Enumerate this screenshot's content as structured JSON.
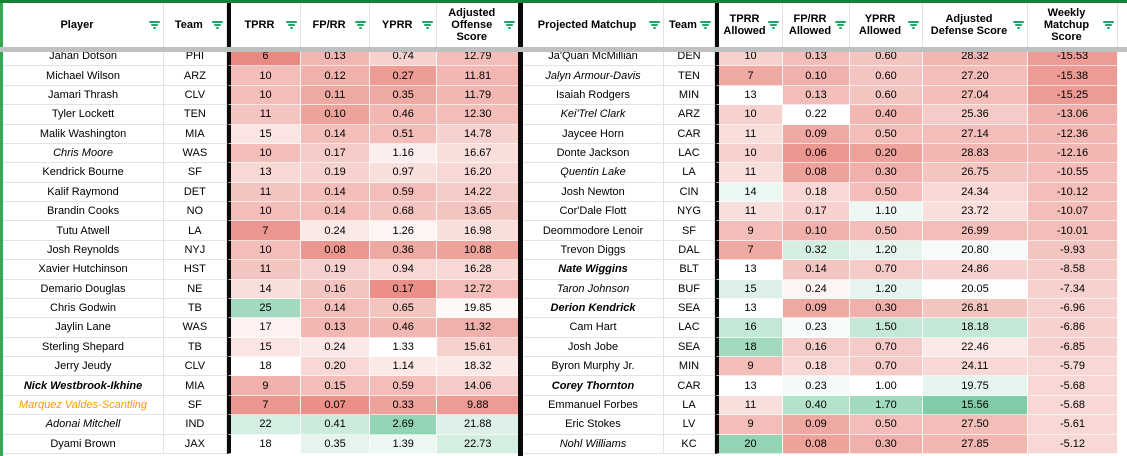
{
  "theme": {
    "top_border_green": "#188038",
    "left_border_green": "#34a853",
    "filter_icon_green": "#21a464",
    "thick_divider_black": "#0a0a0a",
    "frozen_bar_gray": "#bdc1c0",
    "gridline_gray": "#e2e2e2",
    "scale_red_max": "#e67c73",
    "scale_green_max": "#57bb8a",
    "orange_player_text": "#ff9900"
  },
  "left_table": {
    "headers": [
      {
        "label": "Player"
      },
      {
        "label": "Team"
      },
      {
        "label": "TPRR"
      },
      {
        "label": "FP/RR"
      },
      {
        "label": "YPRR"
      },
      {
        "label": "Adjusted Offense Score"
      }
    ],
    "rows": [
      {
        "name": "Jahan Dotson",
        "team": "PHI",
        "style": "normal",
        "cells": [
          [
            "6",
            "#e98a82"
          ],
          [
            "0.13",
            "#f2b7b2"
          ],
          [
            "0.74",
            "#f7d1ce"
          ],
          [
            "12.79",
            "#f3beb9"
          ]
        ]
      },
      {
        "name": "Michael Wilson",
        "team": "ARZ",
        "style": "normal",
        "cells": [
          [
            "10",
            "#f3beb9"
          ],
          [
            "0.12",
            "#f0b0ab"
          ],
          [
            "0.27",
            "#ec9c95"
          ],
          [
            "11.81",
            "#f2b7b2"
          ]
        ]
      },
      {
        "name": "Jamari Thrash",
        "team": "CLV",
        "style": "normal",
        "cells": [
          [
            "10",
            "#f3beb9"
          ],
          [
            "0.11",
            "#efa9a3"
          ],
          [
            "0.35",
            "#efa9a3"
          ],
          [
            "11.79",
            "#f2b7b2"
          ]
        ]
      },
      {
        "name": "Tyler Lockett",
        "team": "TEN",
        "style": "normal",
        "cells": [
          [
            "11",
            "#f4c5c0"
          ],
          [
            "0.10",
            "#eda29c"
          ],
          [
            "0.46",
            "#f2b7b2"
          ],
          [
            "12.30",
            "#f3beb9"
          ]
        ]
      },
      {
        "name": "Malik Washington",
        "team": "MIA",
        "style": "normal",
        "cells": [
          [
            "15",
            "#fae5e3"
          ],
          [
            "0.14",
            "#f3beb9"
          ],
          [
            "0.51",
            "#f3beb9"
          ],
          [
            "14.78",
            "#f7d1ce"
          ]
        ]
      },
      {
        "name": "Chris Moore",
        "team": "WAS",
        "style": "italic",
        "cells": [
          [
            "10",
            "#f3beb9"
          ],
          [
            "0.17",
            "#f5cbc7"
          ],
          [
            "1.16",
            "#fceeec"
          ],
          [
            "16.67",
            "#f9dfdc"
          ]
        ]
      },
      {
        "name": "Kendrick Bourne",
        "team": "SF",
        "style": "normal",
        "cells": [
          [
            "13",
            "#f8d8d5"
          ],
          [
            "0.19",
            "#f7d1ce"
          ],
          [
            "0.97",
            "#f9dfdc"
          ],
          [
            "16.20",
            "#f8d8d5"
          ]
        ]
      },
      {
        "name": "Kalif Raymond",
        "team": "DET",
        "style": "normal",
        "cells": [
          [
            "11",
            "#f4c5c0"
          ],
          [
            "0.14",
            "#f3beb9"
          ],
          [
            "0.59",
            "#f3beb9"
          ],
          [
            "14.22",
            "#f5cbc7"
          ]
        ]
      },
      {
        "name": "Brandin Cooks",
        "team": "NO",
        "style": "normal",
        "cells": [
          [
            "10",
            "#f3beb9"
          ],
          [
            "0.14",
            "#f3beb9"
          ],
          [
            "0.68",
            "#f4c5c0"
          ],
          [
            "13.65",
            "#f4c5c0"
          ]
        ]
      },
      {
        "name": "Tutu Atwell",
        "team": "LA",
        "style": "normal",
        "cells": [
          [
            "7",
            "#eb968f"
          ],
          [
            "0.24",
            "#fbe9e7"
          ],
          [
            "1.26",
            "#fdf4f3"
          ],
          [
            "16.98",
            "#f9dfdc"
          ]
        ]
      },
      {
        "name": "Josh Reynolds",
        "team": "NYJ",
        "style": "normal",
        "cells": [
          [
            "10",
            "#f3beb9"
          ],
          [
            "0.08",
            "#eb968f"
          ],
          [
            "0.36",
            "#efa9a3"
          ],
          [
            "10.88",
            "#eda29c"
          ]
        ]
      },
      {
        "name": "Xavier Hutchinson",
        "team": "HST",
        "style": "normal",
        "cells": [
          [
            "11",
            "#f4c5c0"
          ],
          [
            "0.19",
            "#f7d1ce"
          ],
          [
            "0.94",
            "#f8d8d5"
          ],
          [
            "16.28",
            "#f8d8d5"
          ]
        ]
      },
      {
        "name": "Demario Douglas",
        "team": "NE",
        "style": "normal",
        "cells": [
          [
            "14",
            "#f9dfdc"
          ],
          [
            "0.16",
            "#f4c5c0"
          ],
          [
            "0.17",
            "#ea9089"
          ],
          [
            "12.72",
            "#f3beb9"
          ]
        ]
      },
      {
        "name": "Chris Godwin",
        "team": "TB",
        "style": "normal",
        "cells": [
          [
            "25",
            "#a2dabf"
          ],
          [
            "0.14",
            "#f3beb9"
          ],
          [
            "0.65",
            "#f4c5c0"
          ],
          [
            "19.85",
            "#fef8f7"
          ]
        ]
      },
      {
        "name": "Jaylin Lane",
        "team": "WAS",
        "style": "normal",
        "cells": [
          [
            "17",
            "#fdf2f1"
          ],
          [
            "0.13",
            "#f2b7b2"
          ],
          [
            "0.46",
            "#f2b7b2"
          ],
          [
            "11.32",
            "#f0b0ab"
          ]
        ]
      },
      {
        "name": "Sterling Shepard",
        "team": "TB",
        "style": "normal",
        "cells": [
          [
            "15",
            "#fae5e3"
          ],
          [
            "0.24",
            "#fbe9e7"
          ],
          [
            "1.33",
            "#ffffff"
          ],
          [
            "15.61",
            "#f7d1ce"
          ]
        ]
      },
      {
        "name": "Jerry Jeudy",
        "team": "CLV",
        "style": "normal",
        "cells": [
          [
            "18",
            "#ffffff"
          ],
          [
            "0.20",
            "#f8d8d5"
          ],
          [
            "1.14",
            "#fbe9e7"
          ],
          [
            "18.32",
            "#fbe9e7"
          ]
        ]
      },
      {
        "name": "Nick Westbrook-Ikhine",
        "team": "MIA",
        "style": "bold-italic",
        "cells": [
          [
            "9",
            "#f0b0ab"
          ],
          [
            "0.15",
            "#f3beb9"
          ],
          [
            "0.59",
            "#f3beb9"
          ],
          [
            "14.06",
            "#f5cbc7"
          ]
        ]
      },
      {
        "name": "Marquez Valdes-Scantling",
        "team": "SF",
        "style": "italic-orange",
        "cells": [
          [
            "7",
            "#eb968f"
          ],
          [
            "0.07",
            "#ea9089"
          ],
          [
            "0.33",
            "#eda29c"
          ],
          [
            "9.88",
            "#ec9c95"
          ]
        ]
      },
      {
        "name": "Adonai Mitchell",
        "team": "IND",
        "style": "italic",
        "cells": [
          [
            "22",
            "#d4eee2"
          ],
          [
            "0.41",
            "#cdebdc"
          ],
          [
            "2.69",
            "#93d4b4"
          ],
          [
            "21.88",
            "#ddf1e8"
          ]
        ]
      },
      {
        "name": "Dyami Brown",
        "team": "JAX",
        "style": "normal",
        "cells": [
          [
            "18",
            "#ffffff"
          ],
          [
            "0.35",
            "#e5f4ed"
          ],
          [
            "1.39",
            "#eef8f3"
          ],
          [
            "22.73",
            "#d4eee2"
          ]
        ]
      }
    ]
  },
  "right_table": {
    "headers": [
      {
        "label": "Projected Matchup"
      },
      {
        "label": "Team"
      },
      {
        "label": "TPRR Allowed"
      },
      {
        "label": "FP/RR Allowed"
      },
      {
        "label": "YPRR Allowed"
      },
      {
        "label": "Adjusted Defense Score"
      },
      {
        "label": "Weekly Matchup Score"
      }
    ],
    "rows": [
      {
        "name": "Ja'Quan McMillian",
        "team": "DEN",
        "style": "normal",
        "cells": [
          [
            "10",
            "#f7d1ce"
          ],
          [
            "0.13",
            "#f3beb9"
          ],
          [
            "0.60",
            "#f4c5c0"
          ],
          [
            "28.32",
            "#f2b7b2"
          ],
          [
            "-15.53",
            "#ec9c95"
          ]
        ]
      },
      {
        "name": "Jalyn Armour-Davis",
        "team": "TEN",
        "style": "italic",
        "cells": [
          [
            "7",
            "#efa9a3"
          ],
          [
            "0.10",
            "#f0b0ab"
          ],
          [
            "0.60",
            "#f4c5c0"
          ],
          [
            "27.20",
            "#f3beb9"
          ],
          [
            "-15.38",
            "#ec9c95"
          ]
        ]
      },
      {
        "name": "Isaiah Rodgers",
        "team": "MIN",
        "style": "normal",
        "cells": [
          [
            "13",
            "#ffffff"
          ],
          [
            "0.13",
            "#f3beb9"
          ],
          [
            "0.60",
            "#f4c5c0"
          ],
          [
            "27.04",
            "#f3beb9"
          ],
          [
            "-15.25",
            "#ec9c95"
          ]
        ]
      },
      {
        "name": "Kei'Trel Clark",
        "team": "ARZ",
        "style": "italic",
        "cells": [
          [
            "10",
            "#f7d1ce"
          ],
          [
            "0.22",
            "#ffffff"
          ],
          [
            "0.40",
            "#f2b7b2"
          ],
          [
            "25.36",
            "#f5cbc7"
          ],
          [
            "-13.06",
            "#f0b0ab"
          ]
        ]
      },
      {
        "name": "Jaycee Horn",
        "team": "CAR",
        "style": "normal",
        "cells": [
          [
            "11",
            "#f9dfdc"
          ],
          [
            "0.09",
            "#efa9a3"
          ],
          [
            "0.50",
            "#f3beb9"
          ],
          [
            "27.14",
            "#f3beb9"
          ],
          [
            "-12.36",
            "#f2b7b2"
          ]
        ]
      },
      {
        "name": "Donte Jackson",
        "team": "LAC",
        "style": "normal",
        "cells": [
          [
            "10",
            "#f7d1ce"
          ],
          [
            "0.06",
            "#eb968f"
          ],
          [
            "0.20",
            "#eda29c"
          ],
          [
            "28.83",
            "#f2b7b2"
          ],
          [
            "-12.16",
            "#f2b7b2"
          ]
        ]
      },
      {
        "name": "Quentin Lake",
        "team": "LA",
        "style": "italic",
        "cells": [
          [
            "11",
            "#f9dfdc"
          ],
          [
            "0.08",
            "#eda29c"
          ],
          [
            "0.30",
            "#f0b0ab"
          ],
          [
            "26.75",
            "#f4c5c0"
          ],
          [
            "-10.55",
            "#f3beb9"
          ]
        ]
      },
      {
        "name": "Josh Newton",
        "team": "CIN",
        "style": "normal",
        "cells": [
          [
            "14",
            "#ebf7f1"
          ],
          [
            "0.18",
            "#f8d8d5"
          ],
          [
            "0.50",
            "#f3beb9"
          ],
          [
            "24.34",
            "#f8d8d5"
          ],
          [
            "-10.12",
            "#f3beb9"
          ]
        ]
      },
      {
        "name": "Cor'Dale Flott",
        "team": "NYG",
        "style": "normal",
        "cells": [
          [
            "11",
            "#f9dfdc"
          ],
          [
            "0.17",
            "#f7d1ce"
          ],
          [
            "1.10",
            "#eef8f3"
          ],
          [
            "23.72",
            "#f9dfdc"
          ],
          [
            "-10.07",
            "#f3beb9"
          ]
        ]
      },
      {
        "name": "Deommodore Lenoir",
        "team": "SF",
        "style": "normal",
        "cells": [
          [
            "9",
            "#f3beb9"
          ],
          [
            "0.10",
            "#f0b0ab"
          ],
          [
            "0.50",
            "#f3beb9"
          ],
          [
            "26.99",
            "#f3beb9"
          ],
          [
            "-10.01",
            "#f3beb9"
          ]
        ]
      },
      {
        "name": "Trevon Diggs",
        "team": "DAL",
        "style": "normal",
        "cells": [
          [
            "7",
            "#efa9a3"
          ],
          [
            "0.32",
            "#d4eee2"
          ],
          [
            "1.20",
            "#e5f4ed"
          ],
          [
            "20.80",
            "#f7fcfa"
          ],
          [
            "-9.93",
            "#f4c5c0"
          ]
        ]
      },
      {
        "name": "Nate Wiggins",
        "team": "BLT",
        "style": "bold-italic",
        "cells": [
          [
            "13",
            "#ffffff"
          ],
          [
            "0.14",
            "#f4c5c0"
          ],
          [
            "0.70",
            "#f5cbc7"
          ],
          [
            "24.86",
            "#f7d1ce"
          ],
          [
            "-8.58",
            "#f5cbc7"
          ]
        ]
      },
      {
        "name": "Taron Johnson",
        "team": "BUF",
        "style": "italic",
        "cells": [
          [
            "15",
            "#ddf1e8"
          ],
          [
            "0.24",
            "#fdf4f3"
          ],
          [
            "1.20",
            "#e5f4ed"
          ],
          [
            "20.05",
            "#fefcfc"
          ],
          [
            "-7.34",
            "#f7d1ce"
          ]
        ]
      },
      {
        "name": "Derion Kendrick",
        "team": "SEA",
        "style": "bold-italic",
        "cells": [
          [
            "13",
            "#ffffff"
          ],
          [
            "0.09",
            "#efa9a3"
          ],
          [
            "0.30",
            "#f0b0ab"
          ],
          [
            "26.81",
            "#f4c5c0"
          ],
          [
            "-6.96",
            "#f7d1ce"
          ]
        ]
      },
      {
        "name": "Cam Hart",
        "team": "LAC",
        "style": "normal",
        "cells": [
          [
            "16",
            "#c4e8d6"
          ],
          [
            "0.23",
            "#f7fbf9"
          ],
          [
            "1.50",
            "#c4e8d6"
          ],
          [
            "18.18",
            "#c4e8d6"
          ],
          [
            "-6.86",
            "#f7d1ce"
          ]
        ]
      },
      {
        "name": "Josh Jobe",
        "team": "SEA",
        "style": "normal",
        "cells": [
          [
            "18",
            "#a2dabf"
          ],
          [
            "0.16",
            "#f5cbc7"
          ],
          [
            "0.70",
            "#f5cbc7"
          ],
          [
            "22.46",
            "#fbe9e7"
          ],
          [
            "-6.85",
            "#f7d1ce"
          ]
        ]
      },
      {
        "name": "Byron Murphy Jr.",
        "team": "MIN",
        "style": "normal",
        "cells": [
          [
            "9",
            "#f3beb9"
          ],
          [
            "0.18",
            "#f8d8d5"
          ],
          [
            "0.70",
            "#f5cbc7"
          ],
          [
            "24.11",
            "#f8d8d5"
          ],
          [
            "-5.79",
            "#f8d8d5"
          ]
        ]
      },
      {
        "name": "Corey Thornton",
        "team": "CAR",
        "style": "bold-italic",
        "cells": [
          [
            "13",
            "#ffffff"
          ],
          [
            "0.23",
            "#f3faf7"
          ],
          [
            "1.00",
            "#ffffff"
          ],
          [
            "19.75",
            "#e5f4ed"
          ],
          [
            "-5.68",
            "#f8d8d5"
          ]
        ]
      },
      {
        "name": "Emmanuel Forbes",
        "team": "LA",
        "style": "normal",
        "cells": [
          [
            "11",
            "#f9dfdc"
          ],
          [
            "0.40",
            "#b4e1ca"
          ],
          [
            "1.70",
            "#a2dabf"
          ],
          [
            "15.56",
            "#81cca8"
          ],
          [
            "-5.68",
            "#f8d8d5"
          ]
        ]
      },
      {
        "name": "Eric Stokes",
        "team": "LV",
        "style": "normal",
        "cells": [
          [
            "9",
            "#f3beb9"
          ],
          [
            "0.09",
            "#efa9a3"
          ],
          [
            "0.50",
            "#f3beb9"
          ],
          [
            "27.50",
            "#f3beb9"
          ],
          [
            "-5.61",
            "#f8d8d5"
          ]
        ]
      },
      {
        "name": "Nohl Williams",
        "team": "KC",
        "style": "italic",
        "cells": [
          [
            "20",
            "#93d4b4"
          ],
          [
            "0.08",
            "#eda29c"
          ],
          [
            "0.30",
            "#f0b0ab"
          ],
          [
            "27.85",
            "#f2b7b2"
          ],
          [
            "-5.12",
            "#f8d8d5"
          ]
        ]
      }
    ]
  }
}
